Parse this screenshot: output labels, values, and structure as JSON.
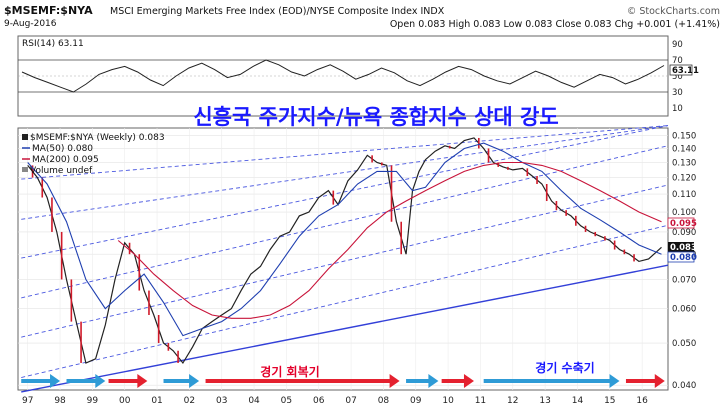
{
  "header": {
    "symbol": "$MSEMF:$NYA",
    "name": "MSCI Emerging Markets Free Index (EOD)/NYSE Composite Index INDX",
    "date": "9-Aug-2016",
    "ohlc": "Open 0.083 High 0.083 Low 0.083 Close 0.083 Chg +0.001 (+1.41%)",
    "source": "© StockCharts.com"
  },
  "chart_data": {
    "type": "line",
    "title": "신흥국 주가지수/뉴욕 종합지수 상대 강도",
    "rsi_panel": {
      "label": "RSI(14) 63.11",
      "ticks": [
        90,
        70,
        50,
        30,
        10
      ],
      "ylim": [
        0,
        100
      ],
      "badge": "63.11",
      "values": [
        55,
        48,
        42,
        36,
        30,
        40,
        52,
        58,
        62,
        55,
        45,
        38,
        50,
        60,
        66,
        58,
        48,
        52,
        62,
        70,
        64,
        55,
        50,
        58,
        64,
        56,
        46,
        52,
        60,
        54,
        44,
        38,
        46,
        55,
        62,
        58,
        50,
        44,
        40,
        48,
        56,
        50,
        42,
        36,
        44,
        52,
        48,
        40,
        46,
        54,
        63.11
      ]
    },
    "price_panel": {
      "legend": [
        "$MSEMF:$NYA (Weekly) 0.083",
        "MA(50) 0.080",
        "MA(200) 0.095",
        "Volume undef"
      ],
      "ticks": [
        "0.150",
        "0.140",
        "0.130",
        "0.120",
        "0.110",
        "0.100",
        "0.090",
        "0.080",
        "0.070",
        "0.060",
        "0.050",
        "0.040"
      ],
      "badges": [
        "0.095",
        "0.083",
        "0.080"
      ],
      "x_ticks": [
        "97",
        "98",
        "99",
        "00",
        "01",
        "02",
        "03",
        "04",
        "05",
        "06",
        "07",
        "08",
        "09",
        "10",
        "11",
        "12",
        "13",
        "14",
        "15",
        "16"
      ],
      "y_scale": "log",
      "ylim": [
        0.039,
        0.156
      ],
      "series": [
        {
          "name": "$MSEMF:$NYA",
          "x": [
            1997.0,
            1997.3,
            1997.6,
            1997.9,
            1998.2,
            1998.5,
            1998.8,
            1999.1,
            1999.4,
            1999.7,
            2000.0,
            2000.3,
            2000.6,
            2000.9,
            2001.2,
            2001.5,
            2001.8,
            2002.1,
            2002.4,
            2002.7,
            2003.0,
            2003.3,
            2003.6,
            2003.9,
            2004.2,
            2004.5,
            2004.8,
            2005.1,
            2005.4,
            2005.7,
            2006.0,
            2006.3,
            2006.6,
            2006.9,
            2007.2,
            2007.5,
            2007.8,
            2008.1,
            2008.4,
            2008.7,
            2008.9,
            2009.1,
            2009.3,
            2009.6,
            2009.9,
            2010.2,
            2010.5,
            2010.8,
            2011.1,
            2011.4,
            2011.7,
            2012.0,
            2012.3,
            2012.6,
            2012.9,
            2013.2,
            2013.5,
            2013.8,
            2014.1,
            2014.4,
            2014.7,
            2015.0,
            2015.3,
            2015.6,
            2015.9,
            2016.2,
            2016.6
          ],
          "values": [
            0.128,
            0.12,
            0.108,
            0.09,
            0.07,
            0.056,
            0.045,
            0.046,
            0.055,
            0.07,
            0.085,
            0.08,
            0.066,
            0.058,
            0.05,
            0.048,
            0.045,
            0.049,
            0.054,
            0.056,
            0.058,
            0.06,
            0.066,
            0.072,
            0.075,
            0.082,
            0.088,
            0.09,
            0.098,
            0.1,
            0.108,
            0.112,
            0.104,
            0.118,
            0.125,
            0.135,
            0.13,
            0.128,
            0.095,
            0.08,
            0.112,
            0.124,
            0.132,
            0.138,
            0.142,
            0.14,
            0.146,
            0.148,
            0.14,
            0.13,
            0.127,
            0.125,
            0.126,
            0.121,
            0.116,
            0.106,
            0.101,
            0.098,
            0.093,
            0.09,
            0.088,
            0.086,
            0.082,
            0.08,
            0.077,
            0.078,
            0.083
          ]
        },
        {
          "name": "MA(50)",
          "x": [
            1997.0,
            1997.6,
            1998.2,
            1998.8,
            1999.4,
            2000.0,
            2000.6,
            2001.2,
            2001.8,
            2002.4,
            2003.0,
            2003.6,
            2004.2,
            2004.8,
            2005.4,
            2006.0,
            2006.6,
            2007.2,
            2007.8,
            2008.4,
            2008.9,
            2009.3,
            2009.9,
            2010.5,
            2011.1,
            2011.7,
            2012.3,
            2012.9,
            2013.5,
            2014.1,
            2014.7,
            2015.3,
            2015.9,
            2016.6
          ],
          "values": [
            0.13,
            0.116,
            0.095,
            0.07,
            0.06,
            0.066,
            0.072,
            0.062,
            0.052,
            0.054,
            0.056,
            0.06,
            0.066,
            0.076,
            0.088,
            0.098,
            0.104,
            0.116,
            0.124,
            0.124,
            0.112,
            0.114,
            0.13,
            0.14,
            0.144,
            0.138,
            0.13,
            0.124,
            0.112,
            0.102,
            0.096,
            0.09,
            0.084,
            0.08
          ]
        },
        {
          "name": "MA(200)",
          "x": [
            1999.8,
            2000.3,
            2000.9,
            2001.5,
            2002.1,
            2002.7,
            2003.3,
            2003.9,
            2004.5,
            2005.1,
            2005.7,
            2006.3,
            2006.9,
            2007.5,
            2008.1,
            2008.7,
            2009.3,
            2009.9,
            2010.5,
            2011.1,
            2011.7,
            2012.3,
            2012.9,
            2013.5,
            2014.1,
            2014.7,
            2015.3,
            2015.9,
            2016.6
          ],
          "values": [
            0.086,
            0.08,
            0.072,
            0.066,
            0.061,
            0.058,
            0.057,
            0.057,
            0.058,
            0.061,
            0.066,
            0.074,
            0.082,
            0.092,
            0.1,
            0.106,
            0.112,
            0.118,
            0.124,
            0.128,
            0.13,
            0.13,
            0.128,
            0.124,
            0.118,
            0.112,
            0.106,
            0.1,
            0.095
          ]
        }
      ],
      "annotations": {
        "recovery": "경기 회복기",
        "contraction": "경기 수축기"
      }
    }
  }
}
